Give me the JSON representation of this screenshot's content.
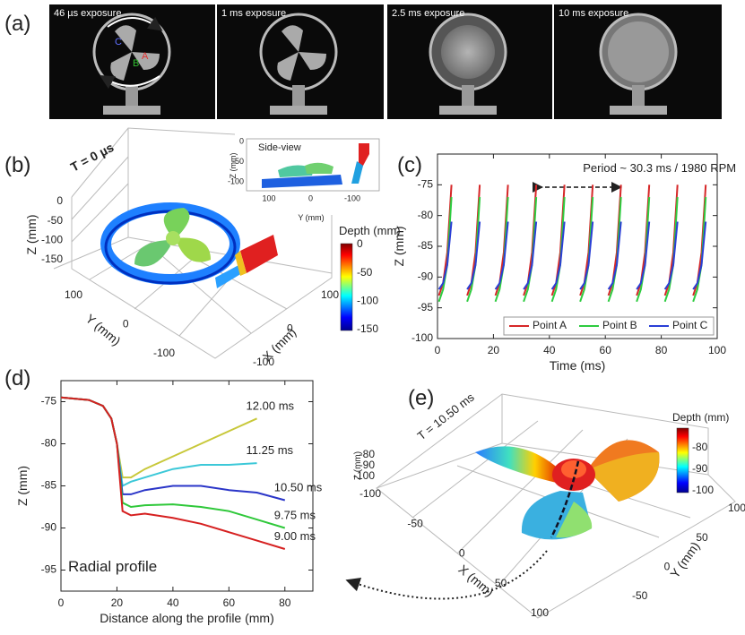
{
  "panel_a": {
    "label": "(a)",
    "exposures": [
      "46 µs exposure",
      "1 ms exposure",
      "2.5 ms exposure",
      "10 ms exposure"
    ],
    "points": [
      "A",
      "B",
      "C"
    ]
  },
  "panel_b": {
    "label": "(b)",
    "time": "T = 0 µs",
    "zlabel": "Z (mm)",
    "ylabel": "Y (mm)",
    "xlabel": "X (mm)",
    "zticks": [
      0,
      -50,
      -100,
      -150
    ],
    "yticks": [
      100,
      0,
      -100
    ],
    "xticks": [
      100,
      0,
      -100
    ],
    "inset": {
      "title": "Side-view",
      "zlabel": "Z (mm)",
      "ylabel": "Y (mm)",
      "zticks": [
        0,
        -50,
        -100
      ],
      "yticks": [
        100,
        0,
        -100
      ]
    },
    "colorbar": {
      "label": "Depth (mm)",
      "ticks": [
        0,
        -50,
        -100,
        -150
      ]
    }
  },
  "chart_data": [
    {
      "type": "line",
      "panel_label": "(c)",
      "annotation": "Period ~ 30.3 ms  / 1980 RPM",
      "xlabel": "Time (ms)",
      "ylabel": "Z (mm)",
      "x": [
        0.5,
        2,
        3.5,
        5,
        6,
        10.6,
        12.1,
        13.6,
        15.1,
        16.1,
        20.7,
        22.2,
        23.7,
        25.2,
        26.2,
        30.8,
        32.3,
        33.8,
        35.3,
        36.3,
        40.9,
        42.4,
        43.9,
        45.4,
        46.4,
        51,
        52.5,
        54,
        55.5,
        56.5,
        61.1,
        62.6,
        64.1,
        65.6,
        66.6,
        71.2,
        72.7,
        74.2,
        75.7,
        76.7,
        81.3,
        82.8,
        84.3,
        85.8,
        86.8,
        91.4,
        92.9,
        94.4,
        95.9,
        96.9
      ],
      "xlim": [
        0,
        100
      ],
      "ylim": [
        -100,
        -70
      ],
      "xticks": [
        0,
        20,
        40,
        60,
        80,
        100
      ],
      "yticks": [
        -100,
        -95,
        -90,
        -85,
        -80,
        -75
      ],
      "legend": "lower right",
      "series": [
        {
          "name": "Point A",
          "color": "#d62728",
          "values": [
            -93,
            -91,
            -86,
            -75,
            null,
            -93,
            -91,
            -86,
            -75,
            null,
            -93,
            -91,
            -86,
            -75,
            null,
            -93,
            -91,
            -86,
            -75,
            null,
            -93,
            -91,
            -86,
            -75,
            null,
            -93,
            -91,
            -86,
            -75,
            null,
            -93,
            -91,
            -86,
            -75,
            null,
            -93,
            -91,
            -86,
            -75,
            null,
            -93,
            -91,
            -86,
            -75,
            null,
            -93,
            -91,
            -86,
            -75,
            null
          ]
        },
        {
          "name": "Point B",
          "color": "#2ecc40",
          "values": [
            -94,
            -92,
            -88,
            -77,
            null,
            -94,
            -92,
            -88,
            -77,
            null,
            -94,
            -92,
            -88,
            -77,
            null,
            -94,
            -92,
            -88,
            -77,
            null,
            -94,
            -92,
            -88,
            -77,
            null,
            -94,
            -92,
            -88,
            -77,
            null,
            -94,
            -92,
            -88,
            -77,
            null,
            -94,
            -92,
            -88,
            -77,
            null,
            -94,
            -92,
            -88,
            -77,
            null,
            -94,
            -92,
            -88,
            -77,
            null
          ]
        },
        {
          "name": "Point C",
          "color": "#2a3fd6",
          "values": [
            -92,
            -91,
            -88,
            -81,
            null,
            -92,
            -91,
            -88,
            -81,
            null,
            -92,
            -91,
            -88,
            -81,
            null,
            -92,
            -91,
            -88,
            -81,
            null,
            -92,
            -91,
            -88,
            -81,
            null,
            -92,
            -91,
            -88,
            -81,
            null,
            -92,
            -91,
            -88,
            -81,
            null,
            -92,
            -91,
            -88,
            -81,
            null,
            -92,
            -91,
            -88,
            -81,
            null,
            -92,
            -91,
            -88,
            -81,
            null
          ]
        }
      ]
    },
    {
      "type": "line",
      "panel_label": "(d)",
      "annotation": "Radial profile",
      "xlabel": "Distance along the profile (mm)",
      "ylabel": "Z (mm)",
      "x": [
        0,
        10,
        15,
        18,
        20,
        22,
        25,
        30,
        40,
        50,
        60,
        70,
        80
      ],
      "xlim": [
        0,
        90
      ],
      "ylim": [
        -97.5,
        -72.5
      ],
      "xticks": [
        0,
        20,
        40,
        60,
        80
      ],
      "yticks": [
        -95,
        -90,
        -85,
        -80,
        -75
      ],
      "legend": "line end",
      "series": [
        {
          "name": "12.00 ms",
          "color": "#c8c83a",
          "values": [
            -74.5,
            -74.8,
            -75.5,
            -77,
            -80,
            -84,
            -84,
            -83,
            -81.5,
            -80,
            -78.5,
            -77,
            null
          ]
        },
        {
          "name": "11.25 ms",
          "color": "#3cc8d8",
          "values": [
            -74.5,
            -74.8,
            -75.5,
            -77,
            -80,
            -85,
            -84.5,
            -84,
            -83,
            -82.5,
            -82.5,
            -82.3,
            null
          ]
        },
        {
          "name": "10.50 ms",
          "color": "#2a35c8",
          "values": [
            -74.5,
            -74.8,
            -75.5,
            -77,
            -80,
            -86,
            -86,
            -85.5,
            -85,
            -85,
            -85.5,
            -85.8,
            -86.7
          ]
        },
        {
          "name": "9.75 ms",
          "color": "#2fc83a",
          "values": [
            -74.5,
            -74.8,
            -75.5,
            -77,
            -80,
            -87,
            -87.5,
            -87.3,
            -87.2,
            -87.5,
            -88,
            -89,
            -90
          ]
        },
        {
          "name": "9.00 ms",
          "color": "#d62020",
          "values": [
            -74.5,
            -74.8,
            -75.5,
            -77,
            -80,
            -88,
            -88.5,
            -88.3,
            -88.8,
            -89.5,
            -90.5,
            -91.5,
            -92.5
          ]
        }
      ]
    }
  ],
  "panel_e": {
    "label": "(e)",
    "time": "T = 10.50 ms",
    "zlabel": "Z (mm)",
    "xlabel": "X (mm)",
    "ylabel": "Y (mm)",
    "zticks": [
      -80,
      -90,
      -100
    ],
    "xticks": [
      -100,
      -50,
      0,
      50,
      100
    ],
    "yticks": [
      100,
      50,
      0,
      -50
    ],
    "colorbar": {
      "label": "Depth (mm)",
      "ticks": [
        -80,
        -90,
        -100
      ]
    }
  }
}
